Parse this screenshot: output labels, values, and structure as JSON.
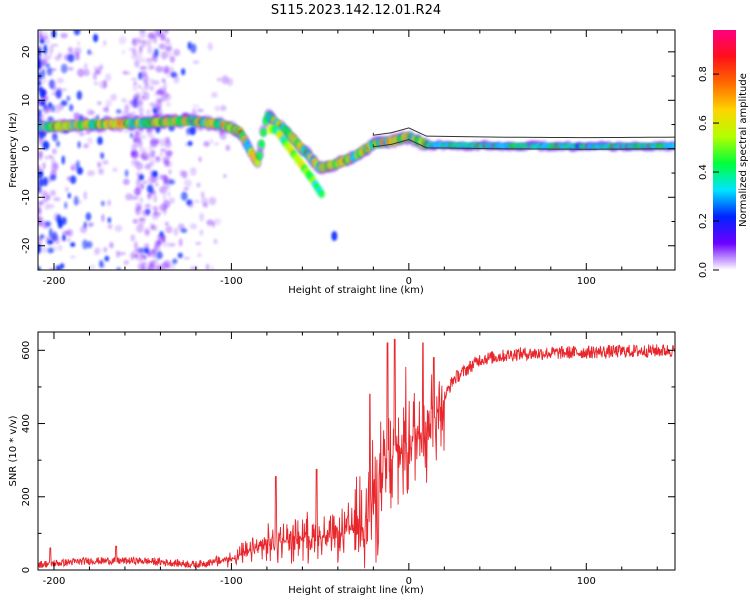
{
  "title": "S115.2023.142.12.01.R24",
  "colors": {
    "axis": "#000000",
    "snr_line": "#e8262b",
    "band": "#333333",
    "colormap": [
      "#ffffff",
      "#6c00ff",
      "#0022ff",
      "#00e5ff",
      "#00ff3a",
      "#b4ff00",
      "#ffd400",
      "#ff6a00",
      "#ff0f1a",
      "#ff0080"
    ]
  },
  "chart_data": [
    {
      "type": "heatmap",
      "xlabel": "Height of straight line (km)",
      "ylabel": "Frequency (Hz)",
      "xlim": [
        -209,
        150
      ],
      "ylim": [
        -25,
        24.5
      ],
      "xticks": [
        -200,
        -100,
        0,
        100
      ],
      "yticks": [
        -20,
        -10,
        0,
        10,
        20
      ],
      "colorbar": {
        "label": "Normalized spectral amplitude",
        "range": [
          0,
          0.98
        ],
        "ticks": [
          0.0,
          0.2,
          0.4,
          0.6,
          0.8
        ]
      },
      "ridge": {
        "description_points": [
          {
            "x": -205,
            "y": 4.5
          },
          {
            "x": -180,
            "y": 5.0
          },
          {
            "x": -150,
            "y": 5.3
          },
          {
            "x": -125,
            "y": 5.8
          },
          {
            "x": -105,
            "y": 5.0
          },
          {
            "x": -95,
            "y": 3.5
          },
          {
            "x": -90,
            "y": 0.0
          },
          {
            "x": -85,
            "y": -3.0
          },
          {
            "x": -80,
            "y": 7.0
          },
          {
            "x": -70,
            "y": 4.0
          },
          {
            "x": -60,
            "y": 0.0
          },
          {
            "x": -50,
            "y": -4.0
          },
          {
            "x": -40,
            "y": -3.0
          },
          {
            "x": -30,
            "y": -1.5
          },
          {
            "x": -20,
            "y": 1.0
          },
          {
            "x": -10,
            "y": 1.5
          },
          {
            "x": 0,
            "y": 2.5
          },
          {
            "x": 10,
            "y": 0.8
          },
          {
            "x": 50,
            "y": 0.6
          },
          {
            "x": 100,
            "y": 0.5
          },
          {
            "x": 150,
            "y": 0.6
          }
        ],
        "secondary_points": [
          {
            "x": -75,
            "y": 4.0
          },
          {
            "x": -65,
            "y": -1.0
          },
          {
            "x": -55,
            "y": -6.0
          },
          {
            "x": -48,
            "y": -10.0
          }
        ],
        "isolated_blob": {
          "x": -42,
          "y": -18.0
        }
      }
    },
    {
      "type": "line",
      "xlabel": "Height of straight line (km)",
      "ylabel": "SNR (10 * v/v)",
      "xlim": [
        -209,
        150
      ],
      "ylim": [
        0,
        650
      ],
      "xticks": [
        -200,
        -100,
        0,
        100
      ],
      "yticks": [
        0,
        200,
        400,
        600
      ],
      "trend": [
        {
          "x": -209,
          "y": 15
        },
        {
          "x": -180,
          "y": 25
        },
        {
          "x": -150,
          "y": 25
        },
        {
          "x": -120,
          "y": 15
        },
        {
          "x": -100,
          "y": 30
        },
        {
          "x": -80,
          "y": 70
        },
        {
          "x": -60,
          "y": 90
        },
        {
          "x": -40,
          "y": 90
        },
        {
          "x": -25,
          "y": 140
        },
        {
          "x": -15,
          "y": 240
        },
        {
          "x": -5,
          "y": 330
        },
        {
          "x": 5,
          "y": 370
        },
        {
          "x": 15,
          "y": 420
        },
        {
          "x": 25,
          "y": 520
        },
        {
          "x": 40,
          "y": 575
        },
        {
          "x": 60,
          "y": 590
        },
        {
          "x": 100,
          "y": 595
        },
        {
          "x": 150,
          "y": 600
        }
      ],
      "spikes": [
        {
          "x": -202,
          "y": 60
        },
        {
          "x": -165,
          "y": 65
        },
        {
          "x": -75,
          "y": 255
        },
        {
          "x": -52,
          "y": 275
        },
        {
          "x": -22,
          "y": 480
        },
        {
          "x": -12,
          "y": 620
        },
        {
          "x": -8,
          "y": 630
        },
        {
          "x": 8,
          "y": 620
        },
        {
          "x": 14,
          "y": 580
        }
      ]
    }
  ]
}
